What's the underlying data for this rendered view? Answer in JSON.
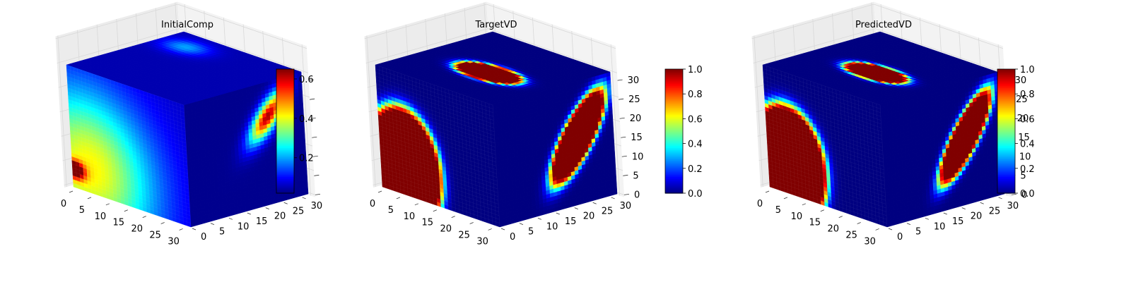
{
  "chart_data": [
    {
      "type": "heatmap",
      "title": "InitialComp",
      "x_ticks": [
        "0",
        "5",
        "10",
        "15",
        "20",
        "25",
        "30"
      ],
      "y_ticks": [
        "0",
        "5",
        "10",
        "15",
        "20",
        "25",
        "30"
      ],
      "z_ticks": [],
      "colorbar": {
        "ticks": [
          "0.2",
          "0.4",
          "0.6"
        ],
        "range": [
          0.02,
          0.65
        ],
        "colormap": "jet"
      },
      "faces": {
        "front": {
          "base": 0.06,
          "blobs": [
            {
              "u": 0.15,
              "v": 0.2,
              "rx": 0.55,
              "ry": 0.65,
              "val": 0.36
            },
            {
              "u": 0.02,
              "v": 0.15,
              "rx": 0.08,
              "ry": 0.07,
              "val": 0.45
            }
          ]
        },
        "top": {
          "base": 0.05,
          "blobs": [
            {
              "u": 0.22,
              "v": 0.8,
              "rx": 0.17,
              "ry": 0.12,
              "val": 0.15
            }
          ]
        },
        "right": {
          "base": 0.03,
          "blobs": [
            {
              "u": 0.7,
              "v": 0.72,
              "rx": 0.22,
              "ry": 0.09,
              "val": 0.65,
              "rot": 0.9
            }
          ]
        }
      }
    },
    {
      "type": "heatmap",
      "title": "TargetVD",
      "x_ticks": [
        "0",
        "5",
        "10",
        "15",
        "20",
        "25",
        "30"
      ],
      "y_ticks": [
        "0",
        "5",
        "10",
        "15",
        "20",
        "25",
        "30"
      ],
      "z_ticks": [
        "0",
        "5",
        "10",
        "15",
        "20",
        "25",
        "30"
      ],
      "colorbar": {
        "ticks": [
          "0.0",
          "0.2",
          "0.4",
          "0.6",
          "0.8",
          "1.0"
        ],
        "range": [
          0,
          1
        ],
        "colormap": "jet"
      },
      "faces": {
        "front": {
          "base": 0.0,
          "blobs": [
            {
              "u": 0.2,
              "v": 0.22,
              "rx": 0.32,
              "ry": 0.5,
              "val": 1.4,
              "soft": 0.2
            }
          ]
        },
        "top": {
          "base": 0.0,
          "blobs": [
            {
              "u": 0.55,
              "v": 0.42,
              "rx": 0.25,
              "ry": 0.13,
              "val": 1.5,
              "soft": 0.3
            }
          ]
        },
        "right": {
          "base": 0.0,
          "blobs": [
            {
              "u": 0.7,
              "v": 0.55,
              "rx": 0.4,
              "ry": 0.14,
              "val": 1.5,
              "rot": 1.0,
              "soft": 0.3
            }
          ]
        }
      }
    },
    {
      "type": "heatmap",
      "title": "PredictedVD",
      "x_ticks": [
        "0",
        "5",
        "10",
        "15",
        "20",
        "25",
        "30"
      ],
      "y_ticks": [
        "0",
        "5",
        "10",
        "15",
        "20",
        "25",
        "30"
      ],
      "z_ticks": [
        "0",
        "5",
        "10",
        "15",
        "20",
        "25",
        "30"
      ],
      "colorbar": {
        "ticks": [
          "0.0",
          "0.2",
          "0.4",
          "0.6",
          "0.8",
          "1.0"
        ],
        "range": [
          0,
          1
        ],
        "colormap": "jet"
      },
      "faces": {
        "front": {
          "base": 0.0,
          "blobs": [
            {
              "u": 0.18,
              "v": 0.25,
              "rx": 0.32,
              "ry": 0.48,
              "val": 1.4,
              "soft": 0.2
            }
          ]
        },
        "top": {
          "base": 0.0,
          "blobs": [
            {
              "u": 0.55,
              "v": 0.42,
              "rx": 0.24,
              "ry": 0.12,
              "val": 1.4,
              "soft": 0.3
            }
          ]
        },
        "right": {
          "base": 0.0,
          "blobs": [
            {
              "u": 0.7,
              "v": 0.55,
              "rx": 0.4,
              "ry": 0.12,
              "val": 1.4,
              "rot": 1.0,
              "soft": 0.3
            }
          ]
        }
      }
    }
  ]
}
